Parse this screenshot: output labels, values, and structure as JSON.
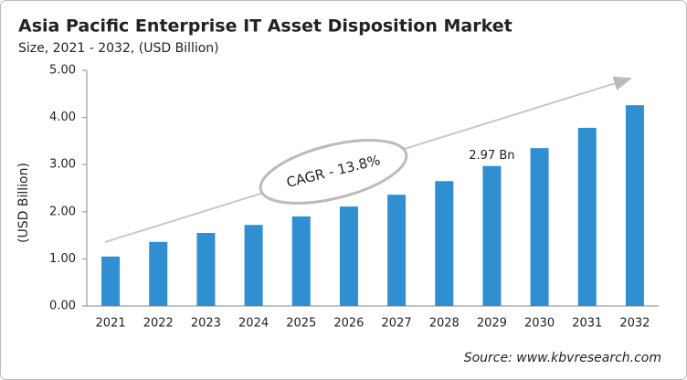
{
  "chart_data": {
    "type": "bar",
    "title": "Asia Pacific Enterprise IT Asset Disposition Market",
    "subtitle": "Size, 2021 - 2032, (USD Billion)",
    "y_label": "(USD Billion)",
    "source": "Source: www.kbvresearch.com",
    "annotation": "CAGR - 13.8%",
    "categories": [
      "2021",
      "2022",
      "2023",
      "2024",
      "2025",
      "2026",
      "2027",
      "2028",
      "2029",
      "2030",
      "2031",
      "2032"
    ],
    "values": [
      1.05,
      1.36,
      1.55,
      1.72,
      1.9,
      2.11,
      2.36,
      2.65,
      2.97,
      3.35,
      3.78,
      4.26
    ],
    "value_labels": [
      null,
      null,
      null,
      null,
      null,
      null,
      null,
      null,
      "2.97 Bn",
      null,
      null,
      null
    ],
    "color": "#2f8fd1",
    "ylim": [
      0,
      5
    ],
    "yticks": [
      {
        "value": 0,
        "label": "0.00"
      },
      {
        "value": 1,
        "label": "1.00"
      },
      {
        "value": 2,
        "label": "2.00"
      },
      {
        "value": 3,
        "label": "3.00"
      },
      {
        "value": 4,
        "label": "4.00"
      },
      {
        "value": 5,
        "label": "5.00"
      }
    ]
  }
}
